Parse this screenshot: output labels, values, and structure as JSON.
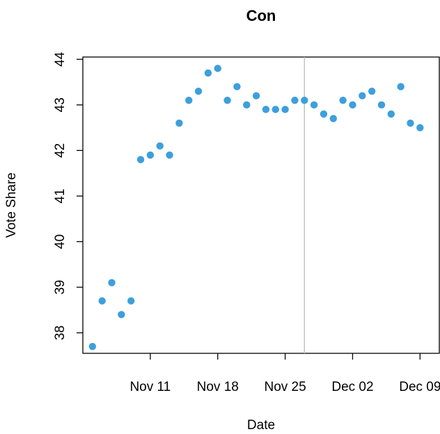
{
  "chart_data": {
    "type": "scatter",
    "title": "Con",
    "xlabel": "Date",
    "ylabel": "Vote Share",
    "x_tick_labels": [
      {
        "date": "2019-11-11",
        "label": "Nov 11"
      },
      {
        "date": "2019-11-18",
        "label": "Nov 18"
      },
      {
        "date": "2019-11-25",
        "label": "Nov 25"
      },
      {
        "date": "2019-12-02",
        "label": "Dec 02"
      },
      {
        "date": "2019-12-09",
        "label": "Dec 09"
      }
    ],
    "y_ticks": [
      38,
      39,
      40,
      41,
      42,
      43,
      44
    ],
    "ylim": [
      37.55,
      44.05
    ],
    "xlim": [
      "2019-11-04",
      "2019-12-11"
    ],
    "reference_line_date": "2019-11-27",
    "point_color": "#3d9fdc",
    "reference_line_color": "#bebebe",
    "grid": false,
    "series": [
      {
        "points": [
          {
            "x": "2019-11-05",
            "y": 37.7
          },
          {
            "x": "2019-11-06",
            "y": 38.7
          },
          {
            "x": "2019-11-07",
            "y": 39.1
          },
          {
            "x": "2019-11-08",
            "y": 38.4
          },
          {
            "x": "2019-11-09",
            "y": 38.7
          },
          {
            "x": "2019-11-10",
            "y": 41.8
          },
          {
            "x": "2019-11-11",
            "y": 41.9
          },
          {
            "x": "2019-11-12",
            "y": 42.1
          },
          {
            "x": "2019-11-13",
            "y": 41.9
          },
          {
            "x": "2019-11-14",
            "y": 42.6
          },
          {
            "x": "2019-11-15",
            "y": 43.1
          },
          {
            "x": "2019-11-16",
            "y": 43.3
          },
          {
            "x": "2019-11-17",
            "y": 43.7
          },
          {
            "x": "2019-11-18",
            "y": 43.8
          },
          {
            "x": "2019-11-19",
            "y": 43.1
          },
          {
            "x": "2019-11-20",
            "y": 43.4
          },
          {
            "x": "2019-11-21",
            "y": 43.0
          },
          {
            "x": "2019-11-22",
            "y": 43.2
          },
          {
            "x": "2019-11-23",
            "y": 42.9
          },
          {
            "x": "2019-11-24",
            "y": 42.9
          },
          {
            "x": "2019-11-25",
            "y": 42.9
          },
          {
            "x": "2019-11-26",
            "y": 43.1
          },
          {
            "x": "2019-11-27",
            "y": 43.1
          },
          {
            "x": "2019-11-28",
            "y": 43.0
          },
          {
            "x": "2019-11-29",
            "y": 42.8
          },
          {
            "x": "2019-11-30",
            "y": 42.7
          },
          {
            "x": "2019-12-01",
            "y": 43.1
          },
          {
            "x": "2019-12-02",
            "y": 43.0
          },
          {
            "x": "2019-12-03",
            "y": 43.2
          },
          {
            "x": "2019-12-04",
            "y": 43.3
          },
          {
            "x": "2019-12-05",
            "y": 43.0
          },
          {
            "x": "2019-12-06",
            "y": 42.8
          },
          {
            "x": "2019-12-07",
            "y": 43.4
          },
          {
            "x": "2019-12-08",
            "y": 42.6
          },
          {
            "x": "2019-12-09",
            "y": 42.5
          }
        ]
      }
    ]
  }
}
